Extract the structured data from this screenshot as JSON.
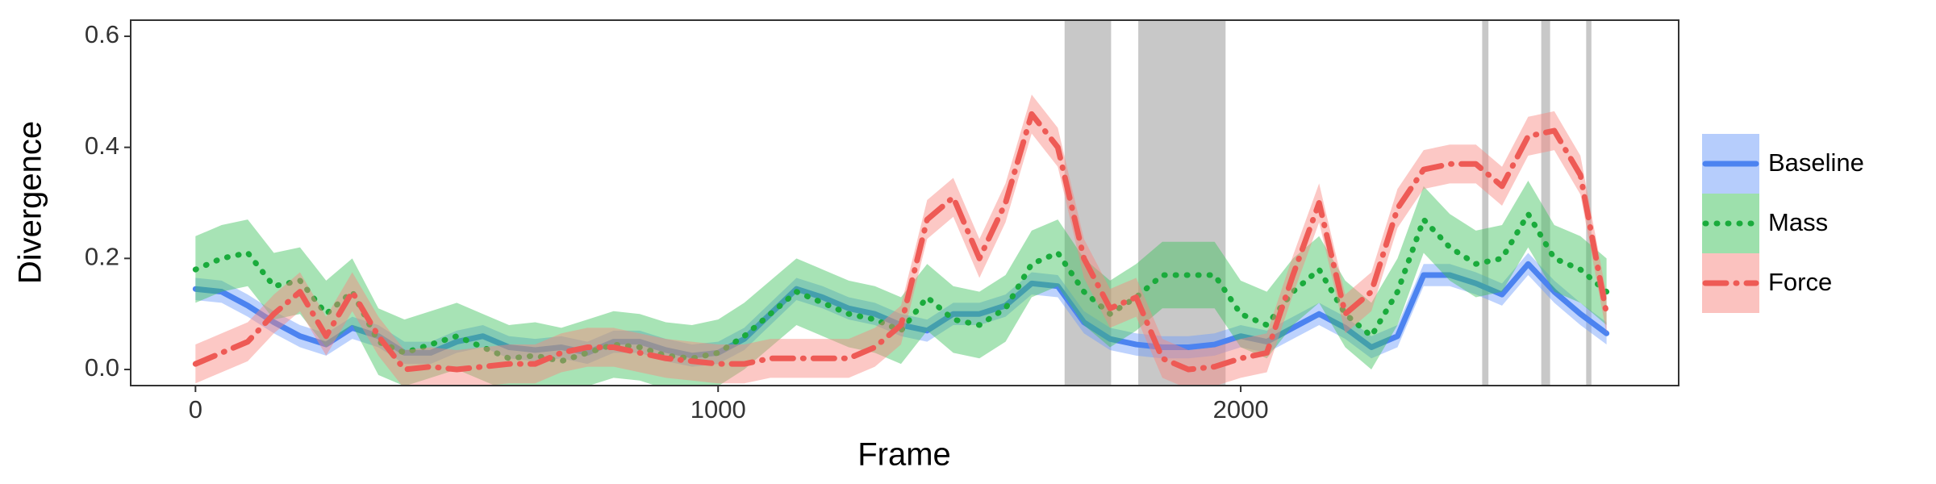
{
  "chart_data": {
    "type": "line",
    "xlabel": "Frame",
    "ylabel": "Divergence",
    "x": [
      0,
      50,
      100,
      150,
      200,
      250,
      300,
      350,
      400,
      450,
      500,
      550,
      600,
      650,
      700,
      750,
      800,
      850,
      900,
      950,
      1000,
      1050,
      1100,
      1150,
      1200,
      1250,
      1300,
      1350,
      1400,
      1450,
      1500,
      1550,
      1600,
      1650,
      1700,
      1750,
      1800,
      1850,
      1900,
      1950,
      2000,
      2050,
      2100,
      2150,
      2200,
      2250,
      2300,
      2350,
      2400,
      2450,
      2500,
      2550,
      2600,
      2650,
      2700
    ],
    "series": [
      {
        "name": "Baseline",
        "color": "#4c83f0",
        "band_color": "#6d9bfa",
        "dash": "solid",
        "error": 0.02,
        "values": [
          0.145,
          0.14,
          0.115,
          0.085,
          0.06,
          0.045,
          0.075,
          0.06,
          0.03,
          0.03,
          0.05,
          0.06,
          0.04,
          0.035,
          0.04,
          0.03,
          0.05,
          0.05,
          0.035,
          0.025,
          0.03,
          0.055,
          0.1,
          0.145,
          0.13,
          0.11,
          0.1,
          0.08,
          0.07,
          0.1,
          0.1,
          0.115,
          0.155,
          0.15,
          0.085,
          0.055,
          0.045,
          0.04,
          0.04,
          0.045,
          0.06,
          0.05,
          0.075,
          0.1,
          0.075,
          0.04,
          0.06,
          0.17,
          0.17,
          0.155,
          0.135,
          0.19,
          0.14,
          0.1,
          0.065
        ]
      },
      {
        "name": "Mass",
        "color": "#1aab3c",
        "band_color": "#3cc25a",
        "dash": "dotted",
        "error": 0.06,
        "values": [
          0.18,
          0.2,
          0.21,
          0.15,
          0.16,
          0.1,
          0.14,
          0.05,
          0.03,
          0.045,
          0.06,
          0.04,
          0.02,
          0.025,
          0.015,
          0.03,
          0.045,
          0.04,
          0.025,
          0.02,
          0.03,
          0.06,
          0.1,
          0.14,
          0.12,
          0.1,
          0.09,
          0.07,
          0.13,
          0.09,
          0.08,
          0.11,
          0.19,
          0.21,
          0.14,
          0.1,
          0.13,
          0.17,
          0.17,
          0.17,
          0.1,
          0.08,
          0.14,
          0.18,
          0.1,
          0.06,
          0.14,
          0.27,
          0.22,
          0.19,
          0.2,
          0.28,
          0.2,
          0.18,
          0.14
        ]
      },
      {
        "name": "Force",
        "color": "#ee5a55",
        "band_color": "#f8857f",
        "dash": "dashdot",
        "error": 0.035,
        "values": [
          0.01,
          0.03,
          0.05,
          0.1,
          0.14,
          0.06,
          0.14,
          0.06,
          0,
          0.005,
          0,
          0.005,
          0.01,
          0.01,
          0.03,
          0.04,
          0.04,
          0.03,
          0.02,
          0.015,
          0.01,
          0.01,
          0.02,
          0.02,
          0.02,
          0.02,
          0.04,
          0.08,
          0.27,
          0.31,
          0.2,
          0.3,
          0.46,
          0.4,
          0.2,
          0.11,
          0.13,
          0.02,
          0,
          0.005,
          0.02,
          0.03,
          0.17,
          0.3,
          0.1,
          0.14,
          0.29,
          0.36,
          0.37,
          0.37,
          0.33,
          0.42,
          0.43,
          0.35,
          0.1
        ]
      }
    ],
    "shaded_regions": [
      [
        1663,
        1752
      ],
      [
        1804,
        1971
      ],
      [
        2462,
        2474
      ],
      [
        2575,
        2592
      ],
      [
        2661,
        2671
      ]
    ],
    "shaded_color": "#c8c8c8",
    "xlim": [
      -124,
      2838
    ],
    "ylim": [
      -0.029,
      0.629
    ],
    "xticks": [
      0,
      1000,
      2000
    ],
    "yticks": [
      {
        "value": 0,
        "label": "0.0"
      },
      0.2,
      0.4,
      0.6
    ],
    "grid": false,
    "legend": "right"
  }
}
